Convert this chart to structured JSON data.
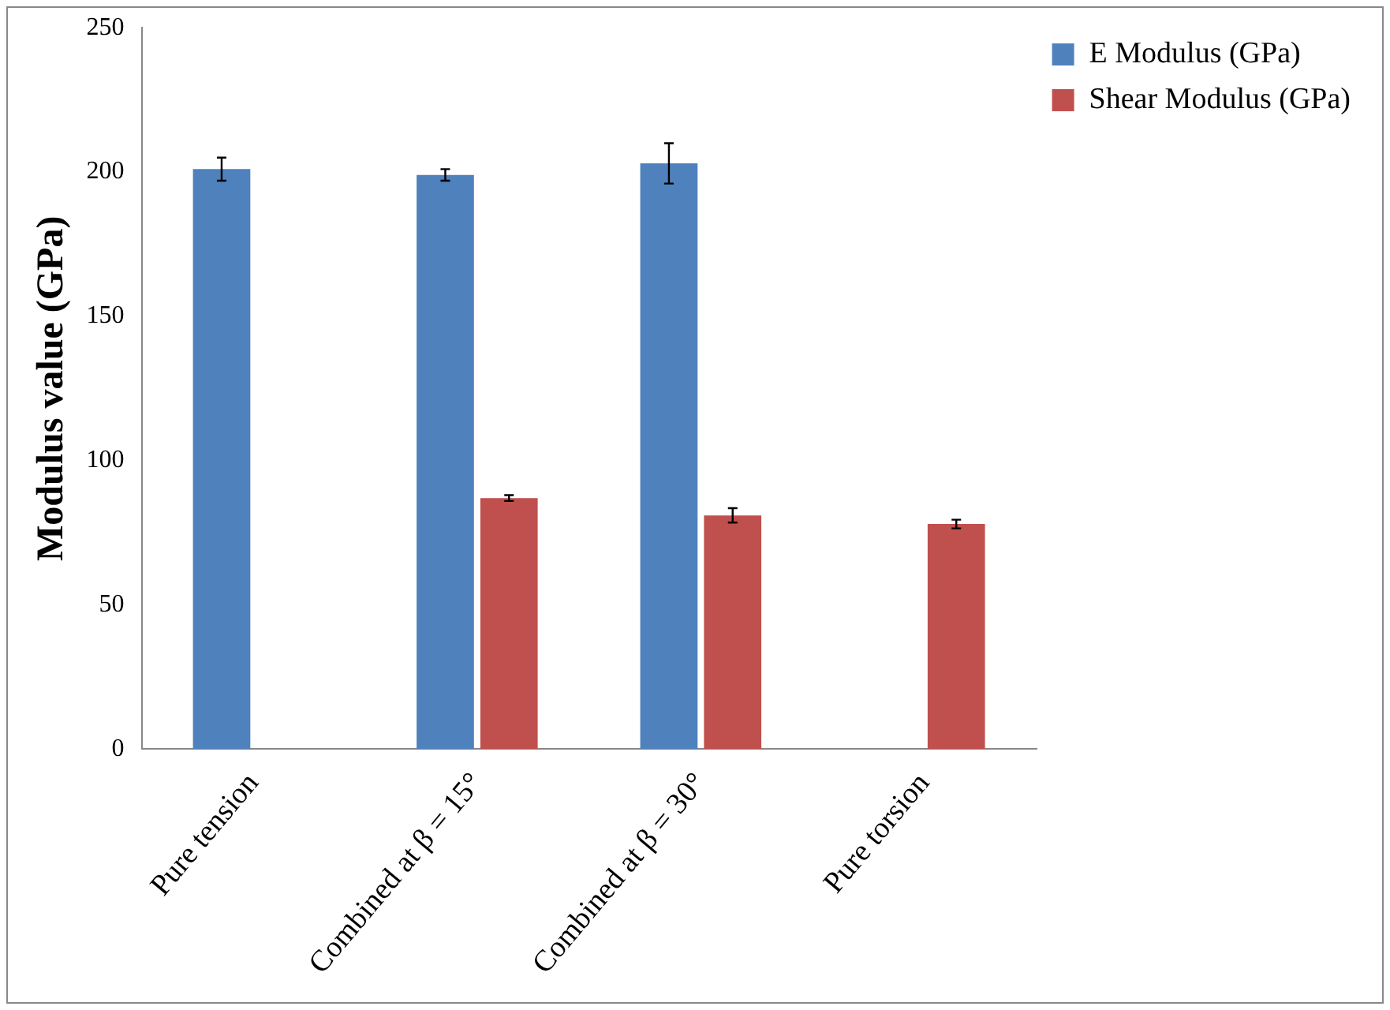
{
  "chart_data": {
    "type": "bar",
    "ylabel": "Modulus value (GPa)",
    "categories": [
      "Pure tension",
      "Combined at β = 15°",
      "Combined at β = 30°",
      "Pure torsion"
    ],
    "series": [
      {
        "name": "E Modulus (GPa)",
        "color": "#4f81bd",
        "values": [
          201,
          199,
          203,
          null
        ],
        "errors": [
          4,
          2,
          7,
          null
        ]
      },
      {
        "name": "Shear Modulus (GPa)",
        "color": "#c0504d",
        "values": [
          null,
          87,
          81,
          78
        ],
        "errors": [
          null,
          1,
          2.5,
          1.5
        ]
      }
    ],
    "ylim": [
      0,
      250
    ],
    "yticks": [
      0,
      50,
      100,
      150,
      200,
      250
    ],
    "grid": false,
    "legend": "right"
  }
}
